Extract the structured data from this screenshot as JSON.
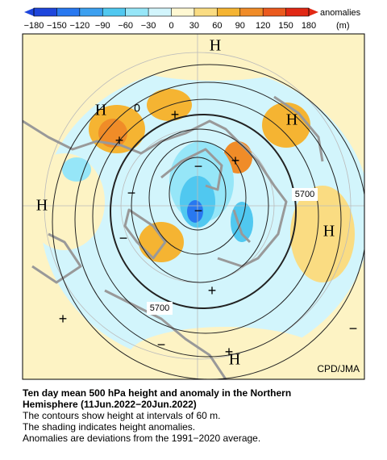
{
  "colorbar": {
    "ticks": [
      "−180",
      "−150",
      "−120",
      "−90",
      "−60",
      "−30",
      "0",
      "30",
      "60",
      "90",
      "120",
      "150",
      "180"
    ],
    "colors": [
      "#1e46dc",
      "#2878f0",
      "#3ca0f0",
      "#50c8f0",
      "#96e6f8",
      "#d2f5fc",
      "#fff8d2",
      "#fadc82",
      "#f5b432",
      "#f08c28",
      "#eb5a1e",
      "#e12814"
    ],
    "title": "anomalies",
    "unit": "(m)"
  },
  "map": {
    "labels": [
      "H",
      "H",
      "H",
      "H",
      "H",
      "H",
      "+",
      "+",
      "+",
      "+",
      "+",
      "+",
      "−",
      "−",
      "−",
      "−",
      "−",
      "−",
      "0"
    ],
    "contour_labels": [
      "5700",
      "5700"
    ],
    "credit": "CPD/JMA"
  },
  "caption": {
    "title_lines": [
      "Ten day mean 500 hPa height and anomaly in the Northern",
      "Hemisphere (11Jun.2022−20Jun.2022)"
    ],
    "lines": [
      "The contours show height at intervals of 60 m.",
      "The shading indicates height anomalies.",
      "Anomalies are deviations from the 1991−2020 average."
    ]
  }
}
